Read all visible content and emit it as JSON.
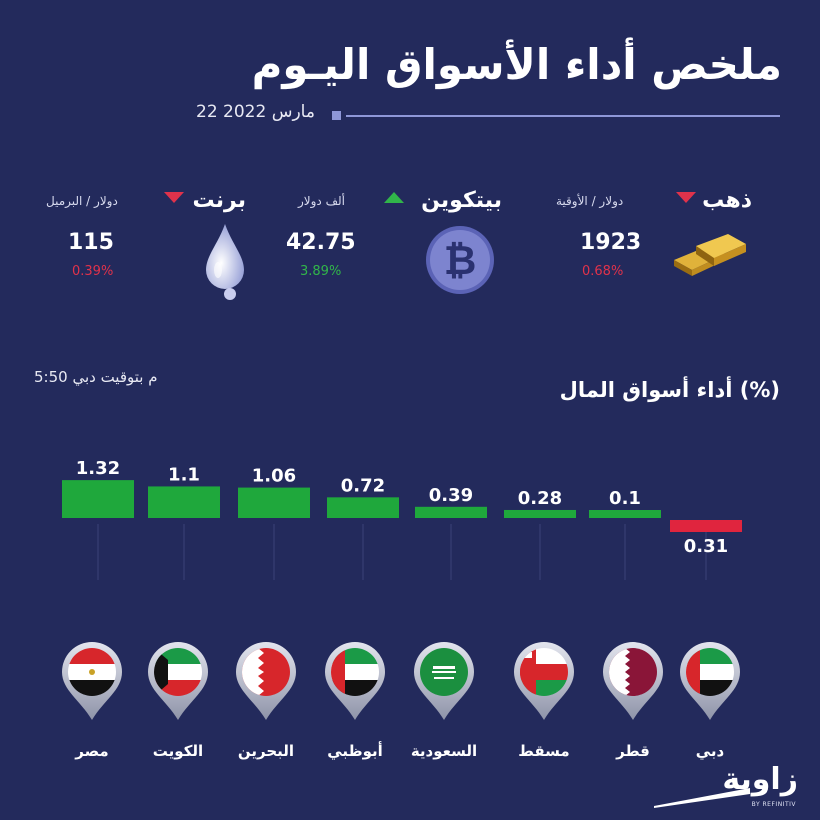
{
  "header": {
    "title": "ملخص أداء الأسواق اليـوم",
    "date": "22 مارس 2022"
  },
  "indicators": [
    {
      "name": "ذهب",
      "unit": "دولار / الأوقية",
      "value": "1923",
      "change": "0.68%",
      "direction": "down",
      "icon": "gold-bars-icon"
    },
    {
      "name": "بيتكوين",
      "unit": "ألف دولار",
      "value": "42.75",
      "change": "3.89%",
      "direction": "up",
      "icon": "bitcoin-icon"
    },
    {
      "name": "برنت",
      "unit": "دولار / البرميل",
      "value": "115",
      "change": "0.39%",
      "direction": "down",
      "icon": "oil-drop-icon"
    }
  ],
  "time_note": "5:50 م بتوقيت دبي",
  "chart_title": "أداء أسواق المال (%)",
  "chart_data": {
    "type": "bar",
    "title": "أداء أسواق المال (%)",
    "categories": [
      "مصر",
      "الكويت",
      "البحرين",
      "أبوظبي",
      "السعودية",
      "مسقط",
      "قطر",
      "دبي"
    ],
    "values": [
      1.32,
      1.1,
      1.06,
      0.72,
      0.39,
      0.28,
      0.1,
      -0.31
    ],
    "value_labels": [
      "1.32",
      "1.1",
      "1.06",
      "0.72",
      "0.39",
      "0.28",
      "0.1",
      "0.31"
    ],
    "positive_color": "#1fa83c",
    "negative_color": "#e0253e",
    "xlabel": "",
    "ylabel": ""
  },
  "markets": [
    {
      "label": "مصر",
      "flag": "egypt-flag-icon"
    },
    {
      "label": "الكويت",
      "flag": "kuwait-flag-icon"
    },
    {
      "label": "البحرين",
      "flag": "bahrain-flag-icon"
    },
    {
      "label": "أبوظبي",
      "flag": "uae-flag-icon"
    },
    {
      "label": "السعودية",
      "flag": "saudi-flag-icon"
    },
    {
      "label": "مسقط",
      "flag": "oman-flag-icon"
    },
    {
      "label": "قطر",
      "flag": "qatar-flag-icon"
    },
    {
      "label": "دبي",
      "flag": "uae-flag-icon"
    }
  ],
  "logo": {
    "text": "زاوية",
    "sub": "BY REFINITIV"
  },
  "colors": {
    "background": "#232a5c",
    "up": "#31b54a",
    "down": "#e0324b"
  }
}
